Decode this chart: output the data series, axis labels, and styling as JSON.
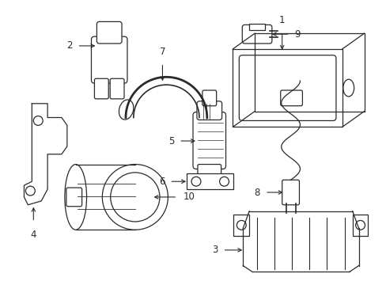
{
  "bg_color": "#ffffff",
  "line_color": "#2a2a2a",
  "fig_width": 4.89,
  "fig_height": 3.6,
  "dpi": 100,
  "label_fontsize": 8.5
}
